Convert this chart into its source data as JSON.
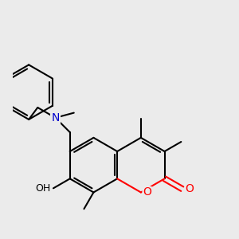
{
  "bg_color": "#ebebeb",
  "line_color": "#000000",
  "N_color": "#0000cc",
  "O_color": "#ff0000",
  "lw": 1.5,
  "fig_size": [
    3.0,
    3.0
  ],
  "dpi": 100,
  "xlim": [
    -0.5,
    4.2
  ],
  "ylim": [
    -1.2,
    4.0
  ]
}
